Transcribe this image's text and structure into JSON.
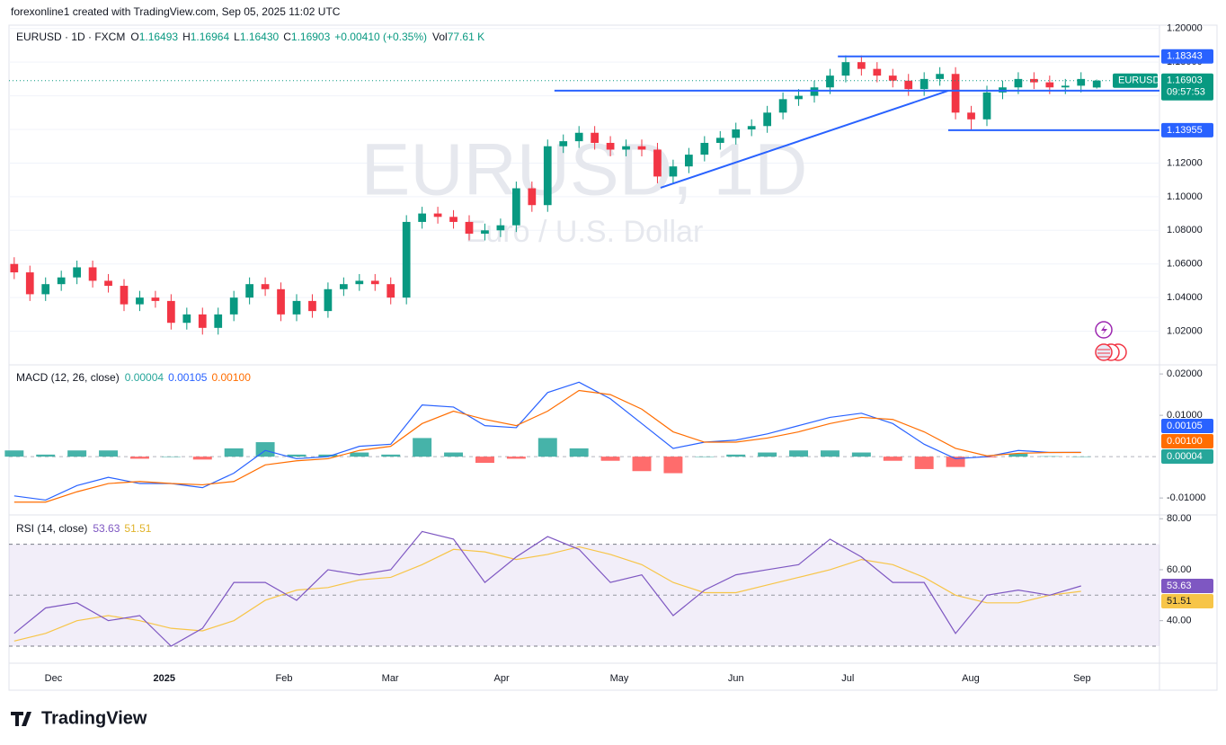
{
  "chart_data": [
    {
      "type": "candlestick",
      "credit": "forexonline1 created with TradingView.com, Sep 05, 2025 11:02 UTC",
      "title": "EURUSD · 1D · FXCM",
      "stats": [
        {
          "label": "O",
          "value": "1.16493"
        },
        {
          "label": "H",
          "value": "1.16964"
        },
        {
          "label": "L",
          "value": "1.16430"
        },
        {
          "label": "C",
          "value": "1.16903"
        }
      ],
      "change": "+0.00410 (+0.35%)",
      "volume": {
        "label": "Vol",
        "value": "77.61 K"
      },
      "watermark": "EURUSD, 1D",
      "description": "Euro / U.S. Dollar",
      "symbol_badge": "EURUSD",
      "countdown": "09:57:53",
      "brand": "TradingView",
      "up_color": "#089981",
      "down_color": "#f23645",
      "line_color": "#2962ff",
      "x": [
        1,
        4,
        7,
        10,
        13,
        16,
        19,
        22,
        25,
        28,
        31,
        34,
        37,
        40,
        43,
        46,
        49,
        52,
        55,
        58,
        61,
        64,
        67,
        70,
        73,
        76,
        79,
        82,
        85,
        88,
        91,
        94,
        97,
        100,
        103,
        106,
        109,
        112,
        115,
        118,
        121,
        124,
        127,
        130,
        133,
        136,
        139,
        142,
        145,
        148,
        151,
        154,
        157,
        160,
        163,
        166,
        169,
        172,
        175,
        178,
        181,
        184,
        187,
        190,
        193,
        196,
        199,
        202,
        205,
        208
      ],
      "open": [
        1.06,
        1.055,
        1.042,
        1.048,
        1.052,
        1.058,
        1.05,
        1.047,
        1.036,
        1.04,
        1.038,
        1.025,
        1.03,
        1.022,
        1.03,
        1.04,
        1.048,
        1.045,
        1.03,
        1.038,
        1.032,
        1.045,
        1.048,
        1.05,
        1.048,
        1.04,
        1.085,
        1.09,
        1.088,
        1.085,
        1.078,
        1.08,
        1.083,
        1.105,
        1.095,
        1.13,
        1.133,
        1.138,
        1.132,
        1.128,
        1.13,
        1.128,
        1.112,
        1.118,
        1.125,
        1.132,
        1.135,
        1.14,
        1.142,
        1.15,
        1.158,
        1.16,
        1.165,
        1.172,
        1.18,
        1.176,
        1.172,
        1.169,
        1.164,
        1.17,
        1.173,
        1.15,
        1.146,
        1.162,
        1.165,
        1.17,
        1.168,
        1.165,
        1.166,
        1.16493
      ],
      "high": [
        1.064,
        1.059,
        1.052,
        1.056,
        1.062,
        1.062,
        1.054,
        1.051,
        1.044,
        1.044,
        1.042,
        1.034,
        1.034,
        1.034,
        1.044,
        1.052,
        1.052,
        1.049,
        1.042,
        1.042,
        1.049,
        1.052,
        1.054,
        1.054,
        1.052,
        1.089,
        1.094,
        1.094,
        1.092,
        1.089,
        1.084,
        1.087,
        1.109,
        1.109,
        1.134,
        1.137,
        1.142,
        1.142,
        1.136,
        1.134,
        1.134,
        1.132,
        1.122,
        1.129,
        1.136,
        1.139,
        1.144,
        1.146,
        1.154,
        1.162,
        1.164,
        1.169,
        1.176,
        1.184,
        1.184,
        1.18,
        1.176,
        1.173,
        1.174,
        1.177,
        1.177,
        1.154,
        1.166,
        1.169,
        1.174,
        1.174,
        1.172,
        1.17,
        1.174,
        1.16964
      ],
      "low": [
        1.051,
        1.038,
        1.038,
        1.044,
        1.048,
        1.046,
        1.043,
        1.032,
        1.032,
        1.034,
        1.021,
        1.021,
        1.018,
        1.018,
        1.026,
        1.036,
        1.041,
        1.026,
        1.026,
        1.028,
        1.028,
        1.041,
        1.044,
        1.044,
        1.036,
        1.036,
        1.081,
        1.084,
        1.081,
        1.074,
        1.074,
        1.076,
        1.079,
        1.091,
        1.091,
        1.126,
        1.129,
        1.128,
        1.124,
        1.124,
        1.124,
        1.108,
        1.108,
        1.114,
        1.121,
        1.128,
        1.131,
        1.136,
        1.138,
        1.146,
        1.154,
        1.156,
        1.161,
        1.168,
        1.172,
        1.168,
        1.165,
        1.16,
        1.16,
        1.166,
        1.146,
        1.14,
        1.142,
        1.158,
        1.161,
        1.164,
        1.161,
        1.161,
        1.162,
        1.1643
      ],
      "close": [
        1.055,
        1.042,
        1.048,
        1.052,
        1.058,
        1.05,
        1.047,
        1.036,
        1.04,
        1.038,
        1.025,
        1.03,
        1.022,
        1.03,
        1.04,
        1.048,
        1.045,
        1.03,
        1.038,
        1.032,
        1.045,
        1.048,
        1.05,
        1.048,
        1.04,
        1.085,
        1.09,
        1.088,
        1.085,
        1.078,
        1.08,
        1.083,
        1.105,
        1.095,
        1.13,
        1.133,
        1.138,
        1.132,
        1.128,
        1.13,
        1.128,
        1.112,
        1.118,
        1.125,
        1.132,
        1.135,
        1.14,
        1.142,
        1.15,
        1.158,
        1.16,
        1.165,
        1.172,
        1.18,
        1.176,
        1.172,
        1.169,
        1.164,
        1.17,
        1.173,
        1.15,
        1.146,
        1.162,
        1.165,
        1.17,
        1.168,
        1.165,
        1.166,
        1.17,
        1.16903
      ],
      "xlim": [
        0,
        220
      ],
      "xticks": [
        {
          "value": 8.5,
          "label": "Dec"
        },
        {
          "value": 29.7,
          "label": "2025"
        },
        {
          "value": 52.6,
          "label": "Feb"
        },
        {
          "value": 72.9,
          "label": "Mar"
        },
        {
          "value": 94.2,
          "label": "Apr"
        },
        {
          "value": 116.7,
          "label": "May"
        },
        {
          "value": 139.0,
          "label": "Jun"
        },
        {
          "value": 160.4,
          "label": "Jul"
        },
        {
          "value": 183.9,
          "label": "Aug"
        },
        {
          "value": 205.2,
          "label": "Sep"
        }
      ],
      "ylim": [
        1.0,
        1.202
      ],
      "yticks": [
        {
          "value": 1.02,
          "label": "1.02000"
        },
        {
          "value": 1.04,
          "label": "1.04000"
        },
        {
          "value": 1.06,
          "label": "1.06000"
        },
        {
          "value": 1.08,
          "label": "1.08000"
        },
        {
          "value": 1.1,
          "label": "1.10000"
        },
        {
          "value": 1.12,
          "label": "1.12000"
        },
        {
          "value": 1.14,
          "label": "1.14000"
        },
        {
          "value": 1.16,
          "label": "1.16000"
        },
        {
          "value": 1.18,
          "label": "1.18000"
        },
        {
          "value": 1.2,
          "label": "1.20000"
        }
      ],
      "grid": true,
      "levels": [
        {
          "value": 1.18343,
          "from": 158.5
        },
        {
          "value": 1.16305,
          "from": 104.3
        },
        {
          "value": 1.13955,
          "from": 179.6
        }
      ],
      "trendline": {
        "x": [
          124.6,
          179.6
        ],
        "y": [
          1.1053,
          1.163
        ]
      }
    },
    {
      "type": "macd",
      "title": "MACD (12, 26, close)",
      "x": [
        1,
        7,
        13,
        19,
        25,
        31,
        37,
        43,
        49,
        55,
        61,
        67,
        73,
        79,
        85,
        91,
        97,
        103,
        109,
        115,
        121,
        127,
        133,
        139,
        145,
        151,
        157,
        163,
        169,
        175,
        181,
        187,
        193,
        199,
        205
      ],
      "histogram": {
        "color": "#26a69a",
        "negative_color": "#ff5252",
        "last_label": "0.00004",
        "values": [
          0.0015,
          0.0005,
          0.0015,
          0.0015,
          -0.0005,
          0.0,
          -0.0007,
          0.002,
          0.0035,
          0.0005,
          0.0005,
          0.001,
          0.0005,
          0.0045,
          0.001,
          -0.0015,
          -0.0005,
          0.0045,
          0.002,
          -0.001,
          -0.0035,
          -0.004,
          0.0,
          0.0005,
          0.001,
          0.0015,
          0.0015,
          0.001,
          -0.001,
          -0.003,
          -0.0025,
          -0.0002,
          0.0007,
          0.0001,
          4e-05
        ]
      },
      "series": [
        {
          "color": "#2962ff",
          "last_label": "0.00105",
          "values": [
            -0.0095,
            -0.0105,
            -0.007,
            -0.005,
            -0.0065,
            -0.0065,
            -0.0075,
            -0.004,
            0.0015,
            -0.0005,
            0.0,
            0.0025,
            0.003,
            0.0125,
            0.012,
            0.0075,
            0.007,
            0.0155,
            0.018,
            0.014,
            0.008,
            0.002,
            0.0035,
            0.004,
            0.0055,
            0.0075,
            0.0095,
            0.0105,
            0.008,
            0.003,
            -0.0005,
            0.0,
            0.0015,
            0.001,
            0.00105
          ]
        },
        {
          "color": "#ff6d00",
          "last_label": "0.00100",
          "values": [
            -0.011,
            -0.011,
            -0.0085,
            -0.0065,
            -0.006,
            -0.0065,
            -0.0068,
            -0.006,
            -0.002,
            -0.001,
            -0.0005,
            0.0015,
            0.0025,
            0.008,
            0.011,
            0.009,
            0.0075,
            0.011,
            0.016,
            0.015,
            0.0115,
            0.006,
            0.0035,
            0.0035,
            0.0045,
            0.006,
            0.008,
            0.0095,
            0.009,
            0.006,
            0.002,
            0.0002,
            0.0008,
            0.001,
            0.001
          ]
        }
      ],
      "ylim": [
        -0.0141,
        0.0222
      ],
      "yticks": [
        {
          "value": -0.01,
          "label": "-0.01000"
        },
        {
          "value": 0.01,
          "label": "0.01000"
        },
        {
          "value": 0.02,
          "label": "0.02000"
        }
      ],
      "zero_line": 0
    },
    {
      "type": "rsi",
      "title": "RSI (14, close)",
      "x": [
        1,
        7,
        13,
        19,
        25,
        31,
        37,
        43,
        49,
        55,
        61,
        67,
        73,
        79,
        85,
        91,
        97,
        103,
        109,
        115,
        121,
        127,
        133,
        139,
        145,
        151,
        157,
        163,
        169,
        175,
        181,
        187,
        193,
        199,
        205
      ],
      "series": [
        {
          "color": "#7e57c2",
          "values": [
            35,
            45,
            47,
            40,
            42,
            30,
            37,
            55,
            55,
            48,
            60,
            58,
            60,
            75,
            72,
            55,
            65,
            73,
            68,
            55,
            58,
            42,
            52,
            58,
            60,
            62,
            72,
            65,
            55,
            55,
            35,
            50,
            52,
            50,
            53.63
          ]
        },
        {
          "color": "#f7c548",
          "values": [
            32,
            35,
            40,
            42,
            40,
            37,
            36,
            40,
            48,
            52,
            53,
            56,
            57,
            62,
            68,
            67,
            64,
            66,
            69,
            66,
            62,
            55,
            51,
            51,
            54,
            57,
            60,
            64,
            62,
            57,
            50,
            47,
            47,
            50,
            51.51
          ]
        }
      ],
      "ylim": [
        23.3,
        81.5
      ],
      "yticks": [
        {
          "value": 40,
          "label": "40.00"
        },
        {
          "value": 60,
          "label": "60.00"
        },
        {
          "value": 80,
          "label": "80.00"
        }
      ],
      "bands": [
        30,
        70
      ],
      "midline": 50
    }
  ]
}
